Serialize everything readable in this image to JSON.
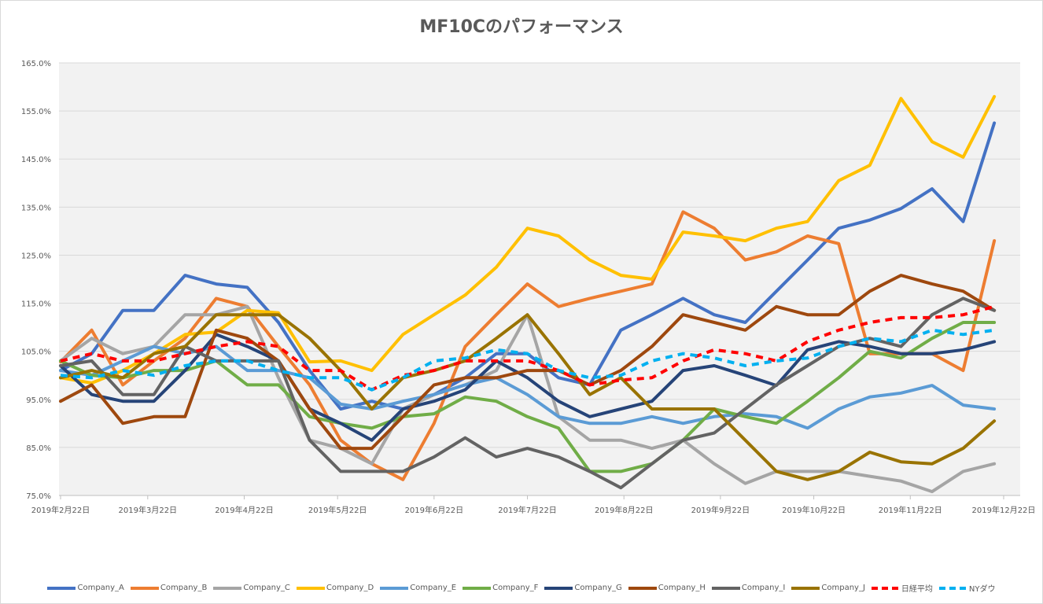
{
  "chart_data": {
    "type": "line",
    "title": "MF10Cのパフォーマンス",
    "xlabel": "",
    "ylabel": "",
    "start_date": "2019-02-22",
    "x_days": [
      0,
      10,
      20,
      30,
      40,
      50,
      60,
      70,
      80,
      90,
      100,
      110,
      120,
      130,
      140,
      150,
      160,
      170,
      180,
      190,
      200,
      210,
      220,
      230,
      240,
      250,
      260,
      270,
      280,
      290,
      300
    ],
    "x_ticks": [
      "2019年2月22日",
      "2019年3月22日",
      "2019年4月22日",
      "2019年5月22日",
      "2019年6月22日",
      "2019年7月22日",
      "2019年8月22日",
      "2019年9月22日",
      "2019年10月22日",
      "2019年11月22日",
      "2019年12月22日"
    ],
    "x_tick_days": [
      0,
      28,
      59,
      89,
      120,
      150,
      181,
      212,
      242,
      273,
      303
    ],
    "xlim_days": [
      0,
      308
    ],
    "y_ticks": [
      "165.0%",
      "155.0%",
      "145.0%",
      "135.0%",
      "125.0%",
      "115.0%",
      "105.0%",
      "95.0%",
      "85.0%",
      "75.0%"
    ],
    "ylim": [
      75,
      165
    ],
    "grid": true,
    "legend_position": "bottom",
    "series": [
      {
        "name": "Company_A",
        "color": "#4472C4",
        "dashed": false,
        "values": [
          101,
          104.5,
          113.5,
          113.5,
          120.8,
          119,
          118.3,
          111,
          101,
          93,
          94.6,
          93,
          96,
          99.5,
          104.5,
          104.5,
          99.5,
          98,
          109.4,
          112.6,
          116,
          112.6,
          111,
          117.5,
          124,
          130.6,
          132.3,
          134.7,
          138.8,
          132,
          152.5
        ]
      },
      {
        "name": "Company_B",
        "color": "#ED7D31",
        "dashed": false,
        "values": [
          102.8,
          109.4,
          98,
          103,
          107.7,
          116,
          114.3,
          106,
          98,
          86.5,
          81.6,
          78.3,
          90,
          106,
          112.6,
          119,
          114.3,
          116,
          117.5,
          119,
          134,
          130.6,
          124,
          125.7,
          129,
          127.4,
          104.5,
          104.5,
          104.5,
          101,
          128
        ]
      },
      {
        "name": "Company_C",
        "color": "#A5A5A5",
        "dashed": false,
        "values": [
          103,
          107.7,
          104.5,
          106,
          112.6,
          112.6,
          114.3,
          99.5,
          86.5,
          84.8,
          81.6,
          93,
          96,
          98,
          101,
          112.6,
          91.4,
          86.5,
          86.5,
          84.8,
          86.5,
          81.6,
          77.5,
          80,
          80,
          80,
          79,
          78,
          75.8,
          80,
          81.6
        ]
      },
      {
        "name": "Company_D",
        "color": "#FFC000",
        "dashed": false,
        "values": [
          99.5,
          98.4,
          101,
          104.5,
          108.5,
          109,
          113.5,
          113,
          102.8,
          103,
          101,
          108.5,
          112.6,
          116.7,
          122.5,
          130.6,
          129,
          124,
          120.8,
          120,
          129.8,
          129,
          128,
          130.6,
          132,
          140.5,
          143.7,
          157.6,
          148.6,
          145.4,
          158
        ]
      },
      {
        "name": "Company_E",
        "color": "#5B9BD5",
        "dashed": false,
        "values": [
          101,
          100,
          103,
          106,
          104.5,
          106,
          101,
          101,
          99.5,
          94,
          93,
          94.6,
          96,
          98,
          99.5,
          96,
          91.4,
          90,
          90,
          91.4,
          90,
          91.4,
          92,
          91.4,
          89,
          93,
          95.5,
          96.3,
          97.9,
          93.8,
          93
        ]
      },
      {
        "name": "Company_F",
        "color": "#70AD47",
        "dashed": false,
        "values": [
          103,
          100,
          99.5,
          101,
          101,
          103,
          98,
          98,
          91.4,
          90,
          89,
          91.4,
          92,
          95.5,
          94.6,
          91.4,
          89,
          80,
          80,
          81.6,
          86.5,
          93,
          91.4,
          90,
          94.6,
          99.5,
          105,
          103.6,
          107.7,
          111,
          111
        ]
      },
      {
        "name": "Company_G",
        "color": "#264478",
        "dashed": false,
        "values": [
          102,
          96,
          94.6,
          94.6,
          101,
          108.5,
          106,
          103,
          93,
          90,
          86.5,
          93,
          94.6,
          97,
          103,
          99.5,
          94.6,
          91.4,
          93,
          94.6,
          101,
          102,
          100,
          97.9,
          105.3,
          107,
          106,
          104.5,
          104.5,
          105.3,
          107
        ]
      },
      {
        "name": "Company_H",
        "color": "#9E480E",
        "dashed": false,
        "values": [
          94.6,
          98,
          90,
          91.4,
          91.4,
          109.4,
          107.7,
          103,
          93,
          84.8,
          84.8,
          91.4,
          98,
          99.5,
          99.5,
          101,
          101,
          98,
          101,
          106,
          112.6,
          111,
          109.4,
          114.3,
          112.6,
          112.6,
          117.5,
          120.8,
          119,
          117.5,
          113.5
        ]
      },
      {
        "name": "Company_I",
        "color": "#636363",
        "dashed": false,
        "values": [
          102,
          103,
          96,
          96,
          106,
          103,
          103,
          103,
          86.5,
          80,
          80,
          80,
          83,
          87,
          83,
          84.8,
          83,
          80,
          76.6,
          81.6,
          86.5,
          88,
          93,
          98,
          102,
          106,
          107.7,
          106,
          112.6,
          116,
          113.5
        ]
      },
      {
        "name": "Company_J",
        "color": "#997300",
        "dashed": false,
        "values": [
          99.5,
          101,
          99.5,
          104.5,
          106,
          112.6,
          112.6,
          112.6,
          107.7,
          101,
          93,
          99.5,
          101,
          103,
          107.7,
          112.6,
          104.5,
          96,
          99.5,
          93,
          93,
          93,
          86.5,
          80,
          78.3,
          80,
          84,
          82,
          81.6,
          84.8,
          90.5
        ]
      },
      {
        "name": "日経平均",
        "color": "#FF0000",
        "dashed": true,
        "values": [
          103,
          104.5,
          103,
          103,
          104.5,
          106,
          107,
          106,
          101,
          101,
          97,
          100,
          101,
          103,
          103,
          103,
          101,
          98,
          99,
          99.5,
          103,
          105.3,
          104.5,
          103,
          107,
          109.4,
          111,
          112,
          112,
          112.6,
          114.3
        ]
      },
      {
        "name": "NYダウ",
        "color": "#00B0F0",
        "dashed": true,
        "values": [
          100,
          99.5,
          101,
          100,
          102,
          103,
          103,
          101,
          99.5,
          99.5,
          97,
          99.5,
          103,
          103.6,
          105.3,
          104.5,
          101,
          99.5,
          100,
          103,
          104.5,
          103.6,
          102,
          103,
          103.6,
          106,
          107.7,
          107,
          109.4,
          108.5,
          109.4
        ]
      }
    ]
  }
}
